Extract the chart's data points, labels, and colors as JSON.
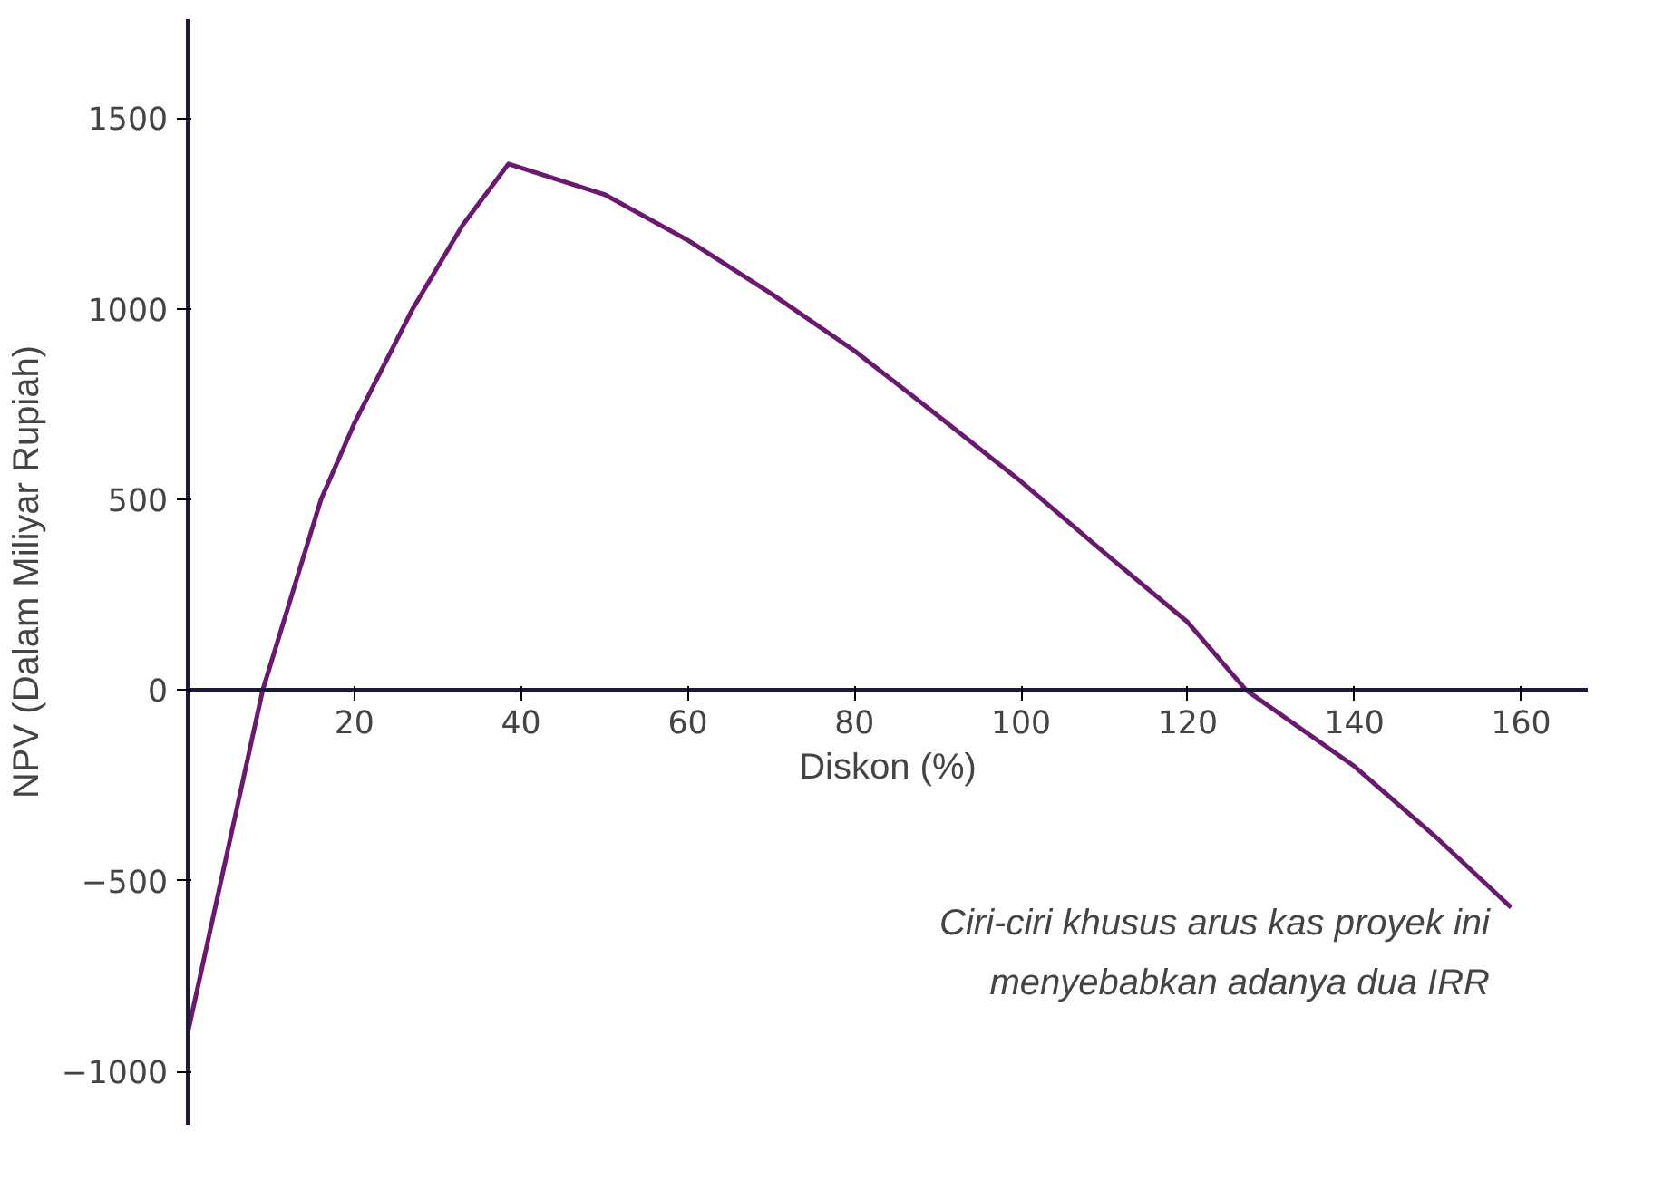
{
  "chart_data": {
    "type": "line",
    "xlabel": "Diskon (%)",
    "ylabel": "NPV (Dalam Miliyar Rupiah)",
    "x": [
      0,
      4,
      9,
      16,
      20,
      27,
      33,
      38.5,
      50,
      60,
      70,
      80,
      90,
      100,
      110,
      120,
      127,
      140,
      150,
      158.8
    ],
    "series": [
      {
        "color": "#6a1a6e",
        "values": [
          -900,
          -500,
          0,
          500,
          700,
          1000,
          1220,
          1380,
          1300,
          1180,
          1040,
          890,
          720,
          547,
          360,
          178,
          0,
          -200,
          -390,
          -570
        ]
      }
    ],
    "xlim": [
      0,
      168
    ],
    "ylim": [
      -1140,
      1760
    ],
    "xticks": [
      20,
      40,
      60,
      80,
      100,
      120,
      140,
      160
    ],
    "yticks": [
      -1000,
      -500,
      0,
      500,
      1000,
      1500
    ],
    "grid": false,
    "marker": "none",
    "line_style": "solid",
    "annotations": [
      "Ciri-ciri khusus arus kas proyek ini\nmenyebabkan adanya dua IRR"
    ]
  }
}
